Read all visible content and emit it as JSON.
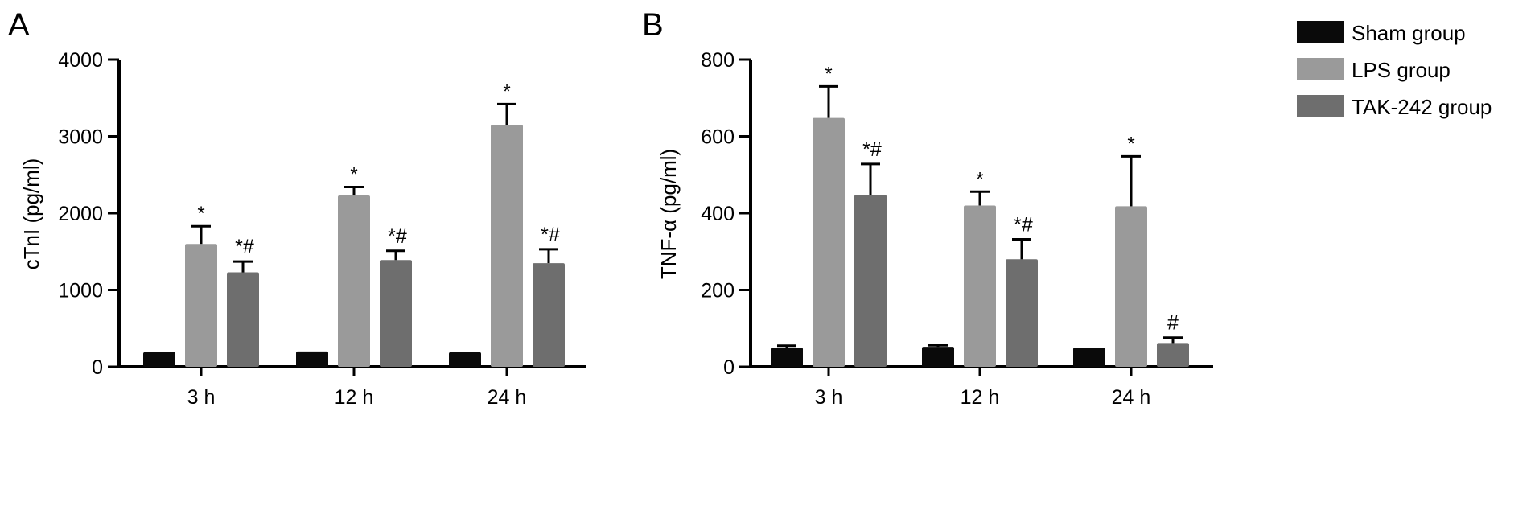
{
  "figure": {
    "legend": {
      "placement": "top-right",
      "entries": [
        {
          "label": "Sham group",
          "color": "#0a0a0a"
        },
        {
          "label": "LPS group",
          "color": "#9a9a9a"
        },
        {
          "label": "TAK-242 group",
          "color": "#6e6e6e"
        }
      ]
    }
  },
  "chart_data": [
    {
      "type": "bar",
      "panel_label": "A",
      "ylabel": "cTnI (pg/ml)",
      "xlabel": "",
      "categories": [
        "3 h",
        "12 h",
        "24 h"
      ],
      "ylim": [
        0,
        4000
      ],
      "yticks": [
        0,
        1000,
        2000,
        3000,
        4000
      ],
      "ytick_labels": [
        "0",
        "1000",
        "2000",
        "3000",
        "4000"
      ],
      "grid": false,
      "series": [
        {
          "name": "Sham group",
          "color": "#0a0a0a",
          "values": [
            190,
            200,
            190
          ],
          "errors": [
            0,
            0,
            0
          ],
          "annotations": [
            "",
            "",
            ""
          ]
        },
        {
          "name": "LPS group",
          "color": "#9a9a9a",
          "values": [
            1600,
            2230,
            3150
          ],
          "errors": [
            230,
            110,
            270
          ],
          "annotations": [
            "*",
            "*",
            "*"
          ]
        },
        {
          "name": "TAK-242 group",
          "color": "#6e6e6e",
          "values": [
            1230,
            1390,
            1350
          ],
          "errors": [
            140,
            120,
            180
          ],
          "annotations": [
            "*#",
            "*#",
            "*#"
          ]
        }
      ]
    },
    {
      "type": "bar",
      "panel_label": "B",
      "ylabel": "TNF-α (pg/ml)",
      "xlabel": "",
      "categories": [
        "3 h",
        "12 h",
        "24 h"
      ],
      "ylim": [
        0,
        800
      ],
      "yticks": [
        0,
        200,
        400,
        600,
        800
      ],
      "ytick_labels": [
        "0",
        "200",
        "400",
        "600",
        "800"
      ],
      "grid": false,
      "series": [
        {
          "name": "Sham group",
          "color": "#0a0a0a",
          "values": [
            50,
            52,
            50
          ],
          "errors": [
            5,
            4,
            0
          ],
          "annotations": [
            "",
            "",
            ""
          ]
        },
        {
          "name": "LPS group",
          "color": "#9a9a9a",
          "values": [
            648,
            420,
            418
          ],
          "errors": [
            82,
            36,
            130
          ],
          "annotations": [
            "*",
            "*",
            "*"
          ]
        },
        {
          "name": "TAK-242 group",
          "color": "#6e6e6e",
          "values": [
            448,
            280,
            62
          ],
          "errors": [
            80,
            52,
            14
          ],
          "annotations": [
            "*#",
            "*#",
            "#"
          ]
        }
      ]
    }
  ]
}
